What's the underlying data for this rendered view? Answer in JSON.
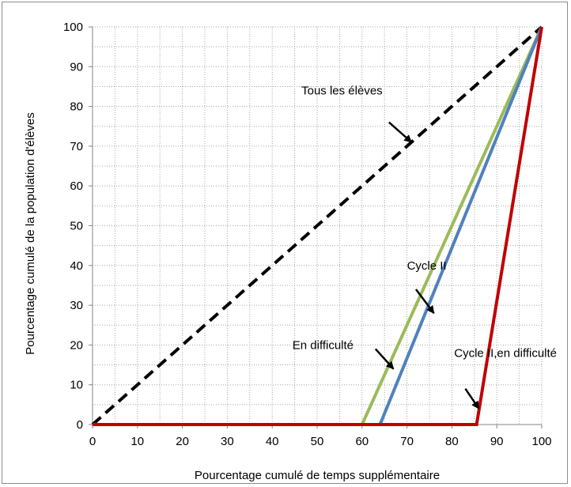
{
  "chart_data": {
    "type": "line",
    "xlabel": "Pourcentage cumulé de temps supplémentaire",
    "ylabel": "Pourcentage cumulé de la population d'élèves",
    "xlim": [
      0,
      100
    ],
    "ylim": [
      0,
      100
    ],
    "xticks": [
      0,
      10,
      20,
      30,
      40,
      50,
      60,
      70,
      80,
      90,
      100
    ],
    "yticks": [
      0,
      10,
      20,
      30,
      40,
      50,
      60,
      70,
      80,
      90,
      100
    ],
    "grid": true,
    "series": [
      {
        "key": "tous",
        "name": "Tous les élèves",
        "color": "#000000",
        "dash": true,
        "points": [
          [
            0,
            0
          ],
          [
            100,
            100
          ]
        ]
      },
      {
        "key": "cycle2",
        "name": "Cycle II",
        "color": "#9BBB59",
        "dash": false,
        "points": [
          [
            60,
            0
          ],
          [
            100,
            100
          ]
        ]
      },
      {
        "key": "difficulte",
        "name": "En difficulté",
        "color": "#4F81BD",
        "dash": false,
        "points": [
          [
            64,
            0
          ],
          [
            100,
            100
          ]
        ]
      },
      {
        "key": "cycle2diff",
        "name": "Cycle II,en difficulté",
        "color": "#C00000",
        "dash": false,
        "points": [
          [
            0,
            0
          ],
          [
            85.5,
            0
          ],
          [
            100,
            100
          ]
        ]
      }
    ],
    "annotations": [
      {
        "text": "Tous les élèves",
        "label_at": [
          46.5,
          83
        ],
        "arrow_from": [
          66,
          76
        ],
        "arrow_to": [
          71,
          71
        ]
      },
      {
        "text": "Cycle II",
        "label_at": [
          70,
          39
        ],
        "arrow_from": [
          72,
          34
        ],
        "arrow_to": [
          76,
          28
        ]
      },
      {
        "text": "En difficulté",
        "label_at": [
          44.5,
          19
        ],
        "arrow_from": [
          63,
          19
        ],
        "arrow_to": [
          67,
          14
        ]
      },
      {
        "text": "Cycle II,en difficulté",
        "label_at": [
          80.5,
          17
        ],
        "arrow_from": [
          83,
          9
        ],
        "arrow_to": [
          86,
          4
        ]
      }
    ]
  }
}
